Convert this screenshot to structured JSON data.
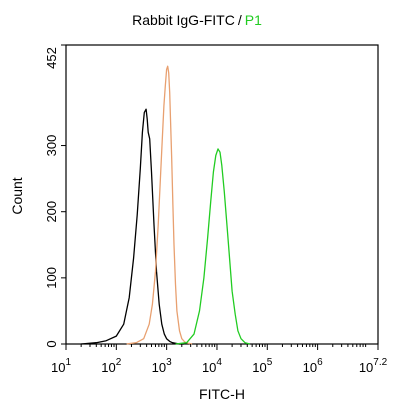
{
  "chart_data": {
    "type": "line",
    "title_parts": [
      {
        "text": "Rabbit IgG-FITC",
        "color": "#000000"
      },
      {
        "text": "/",
        "color": "#000000"
      },
      {
        "text": "P1",
        "color": "#22cc22"
      }
    ],
    "xlabel": "FITC-H",
    "ylabel": "Count",
    "x_scale": "log",
    "xlim": [
      10,
      15848932
    ],
    "ylim": [
      0,
      452
    ],
    "x_ticks": [
      {
        "base": "10",
        "exp": "1",
        "value": 10
      },
      {
        "base": "10",
        "exp": "2",
        "value": 100
      },
      {
        "base": "10",
        "exp": "3",
        "value": 1000
      },
      {
        "base": "10",
        "exp": "4",
        "value": 10000
      },
      {
        "base": "10",
        "exp": "5",
        "value": 100000
      },
      {
        "base": "10",
        "exp": "6",
        "value": 1000000
      },
      {
        "base": "10",
        "exp": "7.2",
        "value": 15848932
      }
    ],
    "y_ticks": [
      "0",
      "100",
      "200",
      "300",
      "452"
    ],
    "y_tick_values": [
      0,
      100,
      200,
      300,
      452
    ],
    "grid": false,
    "series": [
      {
        "color": "#000000",
        "x": [
          20,
          40,
          63,
          100,
          140,
          180,
          220,
          260,
          300,
          330,
          360,
          390,
          410,
          430,
          460,
          500,
          560,
          630,
          710,
          800,
          900,
          1000,
          1150,
          1300,
          1500,
          1800,
          2200
        ],
        "y": [
          0,
          2,
          5,
          12,
          30,
          70,
          130,
          195,
          265,
          320,
          350,
          355,
          340,
          320,
          310,
          260,
          180,
          110,
          60,
          30,
          15,
          8,
          4,
          2,
          1,
          0,
          0
        ]
      },
      {
        "color": "#e8a070",
        "x": [
          160,
          250,
          350,
          450,
          520,
          600,
          680,
          750,
          820,
          880,
          940,
          1000,
          1050,
          1100,
          1150,
          1200,
          1260,
          1330,
          1400,
          1500,
          1600,
          1800,
          2000,
          2300,
          2700,
          3200
        ],
        "y": [
          0,
          2,
          8,
          30,
          60,
          110,
          180,
          250,
          310,
          360,
          390,
          415,
          420,
          410,
          380,
          335,
          280,
          210,
          150,
          90,
          50,
          20,
          8,
          3,
          1,
          0
        ]
      },
      {
        "color": "#22cc22",
        "x": [
          1500,
          2500,
          3500,
          4500,
          5500,
          6500,
          7500,
          8500,
          9500,
          10500,
          11500,
          12500,
          14000,
          16000,
          18000,
          20000,
          23000,
          26000,
          30000,
          36000,
          45000
        ],
        "y": [
          0,
          2,
          15,
          50,
          100,
          160,
          215,
          260,
          285,
          295,
          290,
          270,
          230,
          175,
          125,
          80,
          45,
          20,
          8,
          2,
          0
        ]
      }
    ]
  }
}
